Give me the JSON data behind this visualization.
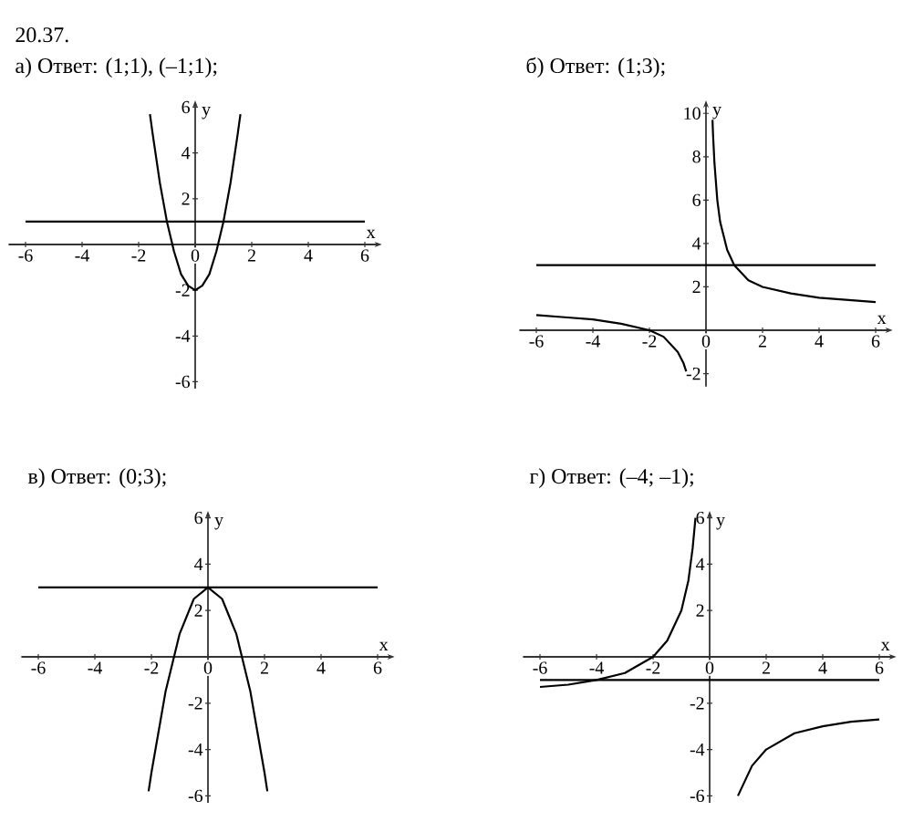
{
  "chart_data": [
    {
      "type": "line",
      "title": "20.37.",
      "subtitle": "а) Ответ: (1;1), (–1;1);",
      "xlabel": "x",
      "ylabel": "y",
      "xlim": [
        -6.6,
        6.6
      ],
      "ylim": [
        -6.3,
        6.3
      ],
      "xticks": [
        -6,
        -4,
        -2,
        0,
        2,
        4,
        6
      ],
      "yticks": [
        -6,
        -4,
        -2,
        2,
        4,
        6
      ],
      "ref_lines": [
        {
          "axis": "y",
          "value": 1,
          "color": "#000000"
        }
      ],
      "series": [
        {
          "color": "#000000",
          "x": [
            -1.6,
            -1.5,
            -1.25,
            -1,
            -0.75,
            -0.5,
            -0.25,
            0,
            0.25,
            0.5,
            0.75,
            1,
            1.25,
            1.5,
            1.6
          ],
          "values": [
            5.7,
            4.8,
            2.7,
            1,
            -0.3,
            -1.3,
            -1.8,
            -2,
            -1.8,
            -1.3,
            -0.3,
            1,
            2.7,
            4.8,
            5.7
          ]
        }
      ]
    },
    {
      "type": "line",
      "title": "б) Ответ: (1;3);",
      "xlabel": "x",
      "ylabel": "y",
      "xlim": [
        -6.6,
        6.6
      ],
      "ylim": [
        -2.6,
        10.6
      ],
      "xticks": [
        -6,
        -4,
        -2,
        0,
        2,
        4,
        6
      ],
      "yticks": [
        -2,
        2,
        4,
        6,
        8,
        10
      ],
      "ref_lines": [
        {
          "axis": "y",
          "value": 3,
          "color": "#000000"
        }
      ],
      "series": [
        {
          "color": "#000000",
          "x": [
            -6,
            -5,
            -4,
            -3,
            -2,
            -1.5,
            -1,
            -0.8,
            -0.7
          ],
          "values": [
            0.7,
            0.6,
            0.5,
            0.3,
            0,
            -0.3,
            -1,
            -1.5,
            -1.9
          ]
        },
        {
          "color": "#000000",
          "x": [
            0.23,
            0.25,
            0.3,
            0.4,
            0.5,
            0.75,
            1,
            1.5,
            2,
            3,
            4,
            5,
            6
          ],
          "values": [
            9.7,
            9,
            7.7,
            6,
            5,
            3.7,
            3,
            2.3,
            2,
            1.7,
            1.5,
            1.4,
            1.3
          ]
        }
      ]
    },
    {
      "type": "line",
      "title": "в) Ответ: (0;3);",
      "xlabel": "x",
      "ylabel": "y",
      "xlim": [
        -6.6,
        6.6
      ],
      "ylim": [
        -6.3,
        6.3
      ],
      "xticks": [
        -6,
        -4,
        -2,
        0,
        2,
        4,
        6
      ],
      "yticks": [
        -6,
        -4,
        -2,
        2,
        4,
        6
      ],
      "ref_lines": [
        {
          "axis": "y",
          "value": 3,
          "color": "#000000"
        }
      ],
      "series": [
        {
          "color": "#000000",
          "x": [
            -2.1,
            -2,
            -1.5,
            -1,
            -0.5,
            0,
            0.5,
            1,
            1.5,
            2,
            2.1
          ],
          "values": [
            -5.8,
            -5,
            -1.5,
            1,
            2.5,
            3,
            2.5,
            1,
            -1.5,
            -5,
            -5.8
          ]
        }
      ]
    },
    {
      "type": "line",
      "title": "г) Ответ: (–4; –1);",
      "xlabel": "x",
      "ylabel": "y",
      "xlim": [
        -6.6,
        6.6
      ],
      "ylim": [
        -6.3,
        6.3
      ],
      "xticks": [
        -6,
        -4,
        -2,
        0,
        2,
        4,
        6
      ],
      "yticks": [
        -6,
        -4,
        -2,
        2,
        4,
        6
      ],
      "ref_lines": [
        {
          "axis": "y",
          "value": -1,
          "color": "#000000"
        }
      ],
      "series": [
        {
          "color": "#000000",
          "x": [
            -6,
            -5,
            -4,
            -3,
            -2,
            -1.5,
            -1,
            -0.75,
            -0.6,
            -0.5
          ],
          "values": [
            -1.3,
            -1.2,
            -1,
            -0.7,
            0,
            0.7,
            2,
            3.3,
            4.7,
            6
          ]
        },
        {
          "color": "#000000",
          "x": [
            1,
            1.5,
            2,
            3,
            4,
            5,
            6
          ],
          "values": [
            -6,
            -4.7,
            -4,
            -3.3,
            -3,
            -2.8,
            -2.7
          ]
        }
      ]
    }
  ]
}
